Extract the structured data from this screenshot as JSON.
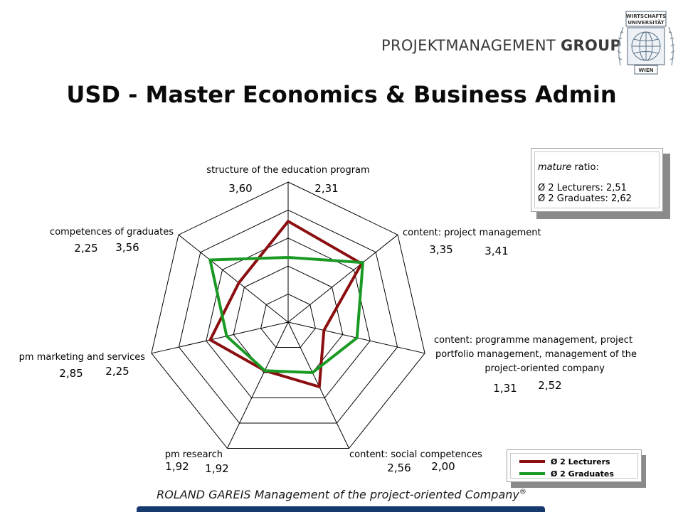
{
  "header": {
    "brand_light": "PROJEKTMANAGEMENT",
    "brand_bold": "GROUP",
    "logo_top": "WIRTSCHAFTS",
    "logo_mid": "UNIVERSITÄT",
    "logo_bottom": "WIEN"
  },
  "colors": {
    "lecturers": "#8b0f10",
    "graduates": "#1a9a24",
    "footer_bar": "#173a6e"
  },
  "chart_data": {
    "type": "radar",
    "title": "USD - Master Economics & Business Admin",
    "rlim": [
      0,
      5
    ],
    "grid": true,
    "ring_count": 5,
    "axes": [
      {
        "label": [
          "structure of the education program"
        ],
        "lecturers_label": "3,60",
        "graduates_label": "2,31"
      },
      {
        "label": [
          "content: project management"
        ],
        "lecturers_label": "3,35",
        "graduates_label": "3,41"
      },
      {
        "label": [
          "content: programme management, project",
          "portfolio management, management of the",
          "project-oriented company"
        ],
        "lecturers_label": "1,31",
        "graduates_label": "2,52"
      },
      {
        "label": [
          "content: social competences"
        ],
        "lecturers_label": "2,56",
        "graduates_label": "2,00"
      },
      {
        "label": [
          "pm research"
        ],
        "lecturers_label": "1,92",
        "graduates_label": "1,92"
      },
      {
        "label": [
          "pm marketing and services"
        ],
        "lecturers_label": "2,85",
        "graduates_label": "2,25"
      },
      {
        "label": [
          "competences of graduates"
        ],
        "lecturers_label": "2,25",
        "graduates_label": "3,56"
      }
    ],
    "series": [
      {
        "name": "Ø 2 Lecturers",
        "values": [
          3.6,
          3.35,
          1.31,
          2.56,
          1.92,
          2.85,
          2.25
        ]
      },
      {
        "name": "Ø 2 Graduates",
        "values": [
          2.31,
          3.41,
          2.52,
          2.0,
          1.92,
          2.25,
          3.56
        ]
      }
    ],
    "legend_placement": "bottom-right"
  },
  "ratio_box": {
    "title_italic": "mature",
    "title_rest": " ratio:",
    "line1": "Ø 2 Lecturers: 2,51",
    "line2": "Ø 2 Graduates: 2,62"
  },
  "footer": {
    "text": "ROLAND GAREIS Management of the project-oriented Company",
    "mark": "®"
  }
}
